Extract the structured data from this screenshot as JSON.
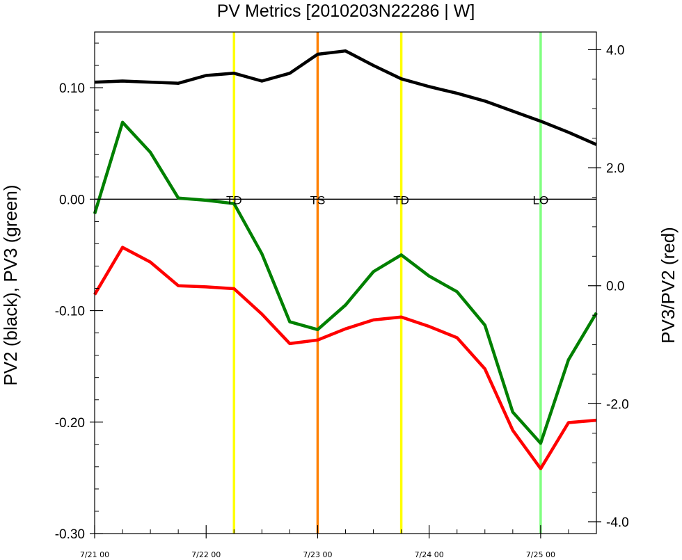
{
  "chart_data": {
    "type": "line",
    "title": "PV Metrics [2010203N22286 | W]",
    "ylabel": "PV2 (black), PV3 (green)",
    "y2label": "PV3/PV2 (red)",
    "grid": false,
    "legend": "none",
    "x": [
      "7/21 00",
      "7/21 06",
      "7/21 12",
      "7/21 18",
      "7/22 00",
      "7/22 06",
      "7/22 12",
      "7/22 18",
      "7/23 00",
      "7/23 06",
      "7/23 12",
      "7/23 18",
      "7/24 00",
      "7/24 06",
      "7/24 12",
      "7/24 18",
      "7/25 00",
      "7/25 06",
      "7/25 12"
    ],
    "x_ticks": [
      {
        "x_index": 0,
        "label": "7/21 00"
      },
      {
        "x_index": 4,
        "label": "7/22 00"
      },
      {
        "x_index": 8,
        "label": "7/23 00"
      },
      {
        "x_index": 12,
        "label": "7/24 00"
      },
      {
        "x_index": 16,
        "label": "7/25 00"
      }
    ],
    "ylim": [
      -0.3,
      0.15
    ],
    "y_ticks": [
      {
        "value": 0.1,
        "label": "0.10"
      },
      {
        "value": 0.0,
        "label": "0.00"
      },
      {
        "value": -0.1,
        "label": "-0.10"
      },
      {
        "value": -0.2,
        "label": "-0.20"
      },
      {
        "value": -0.3,
        "label": "-0.30"
      }
    ],
    "y2lim": [
      -4.2,
      4.3
    ],
    "y2_ticks": [
      {
        "value": 4.0,
        "label": "4.0"
      },
      {
        "value": 2.0,
        "label": "2.0"
      },
      {
        "value": 0.0,
        "label": "0.0"
      },
      {
        "value": -2.0,
        "label": "-2.0"
      },
      {
        "value": -4.0,
        "label": "-4.0"
      }
    ],
    "series": [
      {
        "key": "pv2",
        "axis": "left",
        "color": "#000000",
        "values": [
          0.105,
          0.106,
          0.105,
          0.104,
          0.111,
          0.113,
          0.106,
          0.113,
          0.13,
          0.133,
          0.12,
          0.108,
          0.101,
          0.095,
          0.088,
          0.079,
          0.07,
          0.06,
          0.049
        ]
      },
      {
        "key": "pv3",
        "axis": "left",
        "color": "#008000",
        "values": [
          -0.013,
          0.069,
          0.042,
          0.001,
          -0.001,
          -0.004,
          -0.049,
          -0.11,
          -0.117,
          -0.095,
          -0.065,
          -0.05,
          -0.069,
          -0.083,
          -0.113,
          -0.191,
          -0.219,
          -0.144,
          -0.102
        ]
      },
      {
        "key": "ratio",
        "axis": "right",
        "color": "#ff0000",
        "values": [
          -0.15,
          0.65,
          0.4,
          0.0,
          -0.02,
          -0.05,
          -0.48,
          -0.98,
          -0.92,
          -0.73,
          -0.58,
          -0.53,
          -0.69,
          -0.88,
          -1.41,
          -2.45,
          -3.1,
          -2.32,
          -2.28
        ]
      }
    ],
    "reference_line": {
      "value": 0.0,
      "axis": "left",
      "color": "#000000"
    },
    "stage_markers": [
      {
        "x_index": 5,
        "label": "TD",
        "color": "#ffff00"
      },
      {
        "x_index": 8,
        "label": "TS",
        "color": "#ff8000"
      },
      {
        "x_index": 11,
        "label": "TD",
        "color": "#ffff00"
      },
      {
        "x_index": 16,
        "label": "LO",
        "color": "#80ff80"
      }
    ],
    "stage_label_value": 0.0
  }
}
